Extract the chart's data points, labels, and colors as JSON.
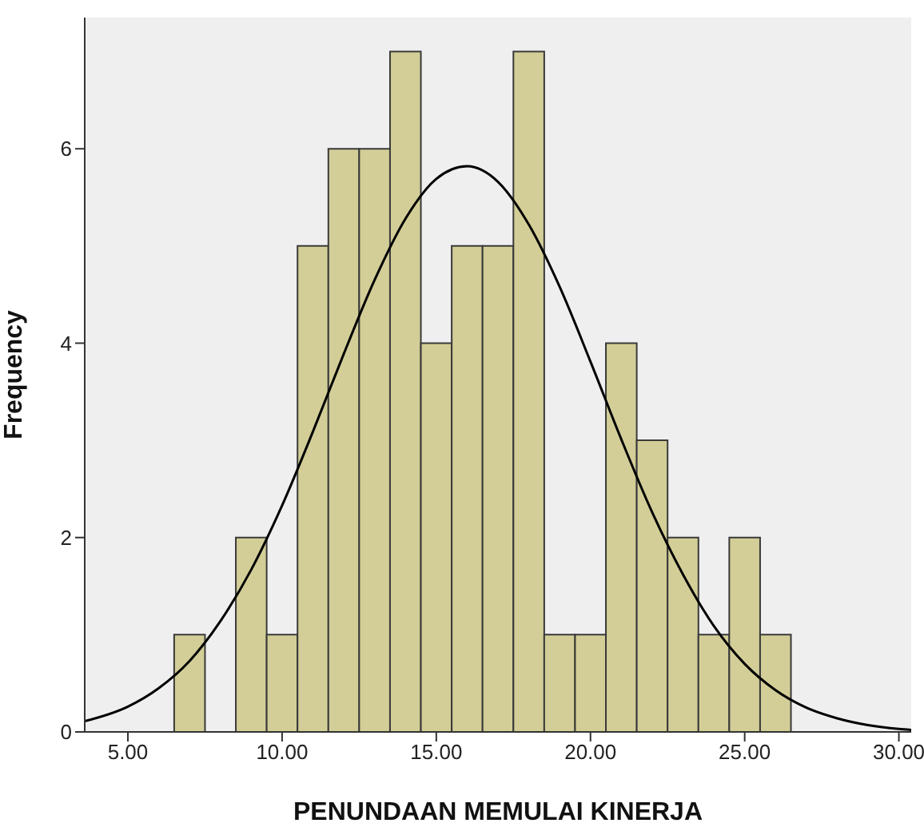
{
  "chart_data": {
    "type": "histogram",
    "xlabel": "PENUNDAAN MEMULAI KINERJA",
    "ylabel": "Frequency",
    "bins": [
      6.5,
      7.5,
      8.5,
      9.5,
      10.5,
      11.5,
      12.5,
      13.5,
      14.5,
      15.5,
      16.5,
      17.5,
      18.5,
      19.5,
      20.5,
      21.5,
      22.5,
      23.5,
      24.5,
      25.5,
      26.5
    ],
    "values": [
      1,
      0,
      2,
      1,
      5,
      6,
      6,
      7,
      4,
      5,
      5,
      7,
      1,
      1,
      4,
      3,
      2,
      1,
      2,
      1
    ],
    "color": "#d3ce97",
    "series": [
      {
        "type": "line",
        "color": "#000000",
        "x": [
          3.6,
          5,
          6,
          7,
          8,
          9,
          10,
          11,
          12,
          13,
          14,
          15,
          16,
          17,
          18,
          19,
          20,
          21,
          22,
          23,
          24,
          25,
          26,
          27,
          28,
          29,
          30,
          30.4
        ],
        "values": [
          0.11,
          0.26,
          0.45,
          0.73,
          1.14,
          1.67,
          2.33,
          3.09,
          3.89,
          4.65,
          5.28,
          5.69,
          5.82,
          5.66,
          5.22,
          4.58,
          3.81,
          3.01,
          2.26,
          1.62,
          1.09,
          0.7,
          0.43,
          0.25,
          0.14,
          0.07,
          0.03,
          0.02
        ]
      }
    ],
    "xlim": [
      3.6,
      30.4
    ],
    "ylim": [
      0,
      7.35
    ],
    "xticks": [
      {
        "value": 5,
        "label": "5.00"
      },
      {
        "value": 10,
        "label": "10.00"
      },
      {
        "value": 15,
        "label": "15.00"
      },
      {
        "value": 20,
        "label": "20.00"
      },
      {
        "value": 25,
        "label": "25.00"
      },
      {
        "value": 30,
        "label": "30.00"
      }
    ],
    "yticks": [
      0,
      2,
      4,
      6
    ],
    "grid": false,
    "legend": false,
    "marker": "none",
    "line_style": "solid"
  }
}
